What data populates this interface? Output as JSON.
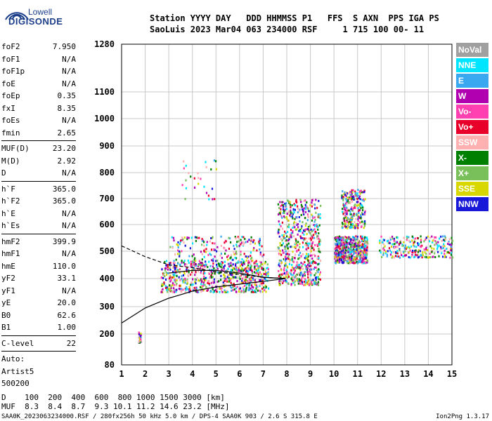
{
  "logo": {
    "top": "Lowell",
    "bottom": "DIGISONDE"
  },
  "header": {
    "line1": "Station YYYY DAY   DDD HHMMSS P1   FFS  S AXN  PPS IGA PS",
    "line2": "SaoLuis 2023 Mar04 063 234000 RSF     1 715 100 00- 11"
  },
  "params": [
    {
      "name": "foF2",
      "value": "7.950"
    },
    {
      "name": "foF1",
      "value": "N/A"
    },
    {
      "name": "foF1p",
      "value": "N/A"
    },
    {
      "name": "foE",
      "value": "N/A"
    },
    {
      "name": "foEp",
      "value": "0.35"
    },
    {
      "name": "fxI",
      "value": "8.35"
    },
    {
      "name": "foEs",
      "value": "N/A"
    },
    {
      "name": "fmin",
      "value": "2.65"
    },
    {
      "div": true
    },
    {
      "name": "MUF(D)",
      "value": "23.20"
    },
    {
      "name": "M(D)",
      "value": "2.92"
    },
    {
      "name": "D",
      "value": "N/A"
    },
    {
      "div": true
    },
    {
      "name": "h`F",
      "value": "365.0"
    },
    {
      "name": "h`F2",
      "value": "365.0"
    },
    {
      "name": "h`E",
      "value": "N/A"
    },
    {
      "name": "h`Es",
      "value": "N/A"
    },
    {
      "div": true
    },
    {
      "name": "hmF2",
      "value": "399.9"
    },
    {
      "name": "hmF1",
      "value": "N/A"
    },
    {
      "name": "hmE",
      "value": "110.0"
    },
    {
      "name": "yF2",
      "value": "33.1"
    },
    {
      "name": "yF1",
      "value": "N/A"
    },
    {
      "name": "yE",
      "value": "20.0"
    },
    {
      "name": "B0",
      "value": "62.6"
    },
    {
      "name": "B1",
      "value": "1.00"
    },
    {
      "div": true
    },
    {
      "name": "C-level",
      "value": "22"
    },
    {
      "div": true
    },
    {
      "name": "Auto:",
      "value": ""
    },
    {
      "name": "Artist5",
      "value": ""
    },
    {
      "name": "500200",
      "value": ""
    }
  ],
  "legend": [
    {
      "label": "NoVal",
      "color": "#a0a0a0"
    },
    {
      "label": "NNE",
      "color": "#00e5ff"
    },
    {
      "label": "E",
      "color": "#39a8f0"
    },
    {
      "label": "W",
      "color": "#b000b0"
    },
    {
      "label": "Vo-",
      "color": "#ff40b0"
    },
    {
      "label": "Vo+",
      "color": "#e8002a"
    },
    {
      "label": "SSW",
      "color": "#ffb0b0"
    },
    {
      "label": "X-",
      "color": "#008000"
    },
    {
      "label": "X+",
      "color": "#7ac05a"
    },
    {
      "label": "SSE",
      "color": "#d8d800"
    },
    {
      "label": "NNW",
      "color": "#1818d8"
    }
  ],
  "bottom": {
    "line1": "D    100  200  400  600  800 1000 1500 3000 [km]",
    "line2": "MUF  8.3  8.4  8.7  9.3 10.1 11.2 14.6 23.2 [MHz]"
  },
  "footer": {
    "left": "SAA0K_2023063234000.RSF / 280fx256h 50 kHz 5.0 km / DPS-4 SAA0K 903 / 2.6 S 315.8 E",
    "right": "Ion2Png 1.3.17"
  },
  "chart_data": {
    "type": "scatter",
    "title": "",
    "xlabel": "",
    "ylabel": "",
    "xlim": [
      1,
      15
    ],
    "ylim": [
      80,
      1280
    ],
    "x_ticks": [
      1,
      2,
      3,
      4,
      5,
      6,
      7,
      8,
      9,
      10,
      11,
      12,
      13,
      14,
      15
    ],
    "y_ticks": [
      80,
      200,
      300,
      400,
      500,
      600,
      700,
      800,
      900,
      1000,
      1100,
      1280
    ],
    "grid": true,
    "legend_position": "right",
    "y_scale": "reciprocal (fixed ionogram height scale)",
    "clusters": [
      {
        "name": "F2 trace low band",
        "x_range": [
          2.65,
          7.2
        ],
        "y_range": [
          355,
          470
        ],
        "density": "high"
      },
      {
        "name": "F2 trace mid band",
        "x_range": [
          3.0,
          7.0
        ],
        "y_range": [
          430,
          560
        ],
        "density": "medium"
      },
      {
        "name": "F2 spread 8-9 MHz",
        "x_range": [
          7.6,
          9.4
        ],
        "y_range": [
          380,
          700
        ],
        "density": "high"
      },
      {
        "name": "F2 spread 10-11 MHz",
        "x_range": [
          10.0,
          11.4
        ],
        "y_range": [
          460,
          560
        ],
        "density": "high"
      },
      {
        "name": "Spread-F upper 10-11 MHz",
        "x_range": [
          10.3,
          11.3
        ],
        "y_range": [
          590,
          740
        ],
        "density": "medium"
      },
      {
        "name": "Spread 12-15 MHz",
        "x_range": [
          11.9,
          15.0
        ],
        "y_range": [
          480,
          560
        ],
        "density": "medium"
      },
      {
        "name": "Upper echoes 3.5-5 MHz",
        "x_range": [
          3.5,
          5.0
        ],
        "y_range": [
          700,
          850
        ],
        "density": "low"
      },
      {
        "name": "Low echo near 1.8 MHz",
        "x_range": [
          1.7,
          1.8
        ],
        "y_range": [
          170,
          210
        ],
        "density": "low"
      }
    ],
    "profile_lines": [
      {
        "name": "solid profile",
        "points": [
          [
            1,
            240
          ],
          [
            2,
            295
          ],
          [
            3,
            330
          ],
          [
            4,
            355
          ],
          [
            5,
            370
          ],
          [
            6,
            380
          ],
          [
            7,
            390
          ],
          [
            7.95,
            400
          ]
        ]
      },
      {
        "name": "dashed trace",
        "points": [
          [
            1,
            520
          ],
          [
            2,
            480
          ],
          [
            3,
            450
          ],
          [
            4,
            440
          ],
          [
            5,
            425
          ],
          [
            6,
            415
          ],
          [
            7,
            405
          ],
          [
            7.95,
            400
          ]
        ]
      },
      {
        "name": "solid trace",
        "points": [
          [
            3,
            420
          ],
          [
            4,
            430
          ],
          [
            5,
            430
          ],
          [
            6,
            420
          ],
          [
            7,
            405
          ],
          [
            7.95,
            400
          ]
        ]
      }
    ]
  }
}
